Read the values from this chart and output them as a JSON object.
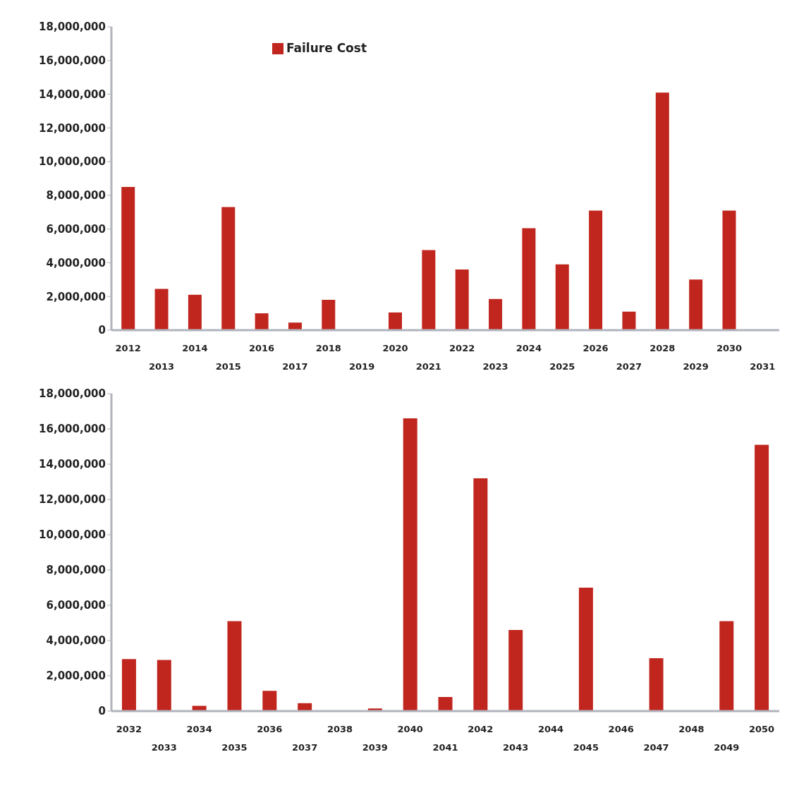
{
  "chart_data": [
    {
      "type": "bar",
      "categories": [
        "2012",
        "2013",
        "2014",
        "2015",
        "2016",
        "2017",
        "2018",
        "2019",
        "2020",
        "2021",
        "2022",
        "2023",
        "2024",
        "2025",
        "2026",
        "2027",
        "2028",
        "2029",
        "2030",
        "2031"
      ],
      "series": [
        {
          "name": "Failure Cost",
          "color": "#c0261e",
          "values": [
            8500000,
            2450000,
            2100000,
            7300000,
            1000000,
            450000,
            1800000,
            0,
            1050000,
            4750000,
            3600000,
            1850000,
            6050000,
            3900000,
            7100000,
            1100000,
            14100000,
            3000000,
            7100000,
            0
          ]
        }
      ],
      "ylim": [
        0,
        18000000
      ],
      "yticks": [
        {
          "value": 0,
          "label": "0"
        },
        {
          "value": 2000000,
          "label": "2,000,000"
        },
        {
          "value": 4000000,
          "label": "4,000,000"
        },
        {
          "value": 6000000,
          "label": "6,000,000"
        },
        {
          "value": 8000000,
          "label": "8,000,000"
        },
        {
          "value": 10000000,
          "label": "10,000,000"
        },
        {
          "value": 12000000,
          "label": "12,000,000"
        },
        {
          "value": 14000000,
          "label": "14,000,000"
        },
        {
          "value": 16000000,
          "label": "16,000,000"
        },
        {
          "value": 18000000,
          "label": "18,000,000"
        }
      ],
      "grid": false,
      "legend": "top"
    },
    {
      "type": "bar",
      "categories": [
        "2032",
        "2033",
        "2034",
        "2035",
        "2036",
        "2037",
        "2038",
        "2039",
        "2040",
        "2041",
        "2042",
        "2043",
        "2044",
        "2045",
        "2046",
        "2047",
        "2048",
        "2049",
        "2050"
      ],
      "color": "#c0261e",
      "values": [
        2950000,
        2900000,
        300000,
        5100000,
        1150000,
        450000,
        0,
        150000,
        16600000,
        800000,
        13200000,
        4600000,
        0,
        7000000,
        0,
        3000000,
        0,
        5100000,
        15100000
      ],
      "ylim": [
        0,
        18000000
      ],
      "yticks": [
        {
          "value": 0,
          "label": "0"
        },
        {
          "value": 2000000,
          "label": "2,000,000"
        },
        {
          "value": 4000000,
          "label": "4,000,000"
        },
        {
          "value": 6000000,
          "label": "6,000,000"
        },
        {
          "value": 8000000,
          "label": "8,000,000"
        },
        {
          "value": 10000000,
          "label": "10,000,000"
        },
        {
          "value": 12000000,
          "label": "12,000,000"
        },
        {
          "value": 14000000,
          "label": "14,000,000"
        },
        {
          "value": 16000000,
          "label": "16,000,000"
        },
        {
          "value": 18000000,
          "label": "18,000,000"
        }
      ],
      "grid": false
    }
  ]
}
